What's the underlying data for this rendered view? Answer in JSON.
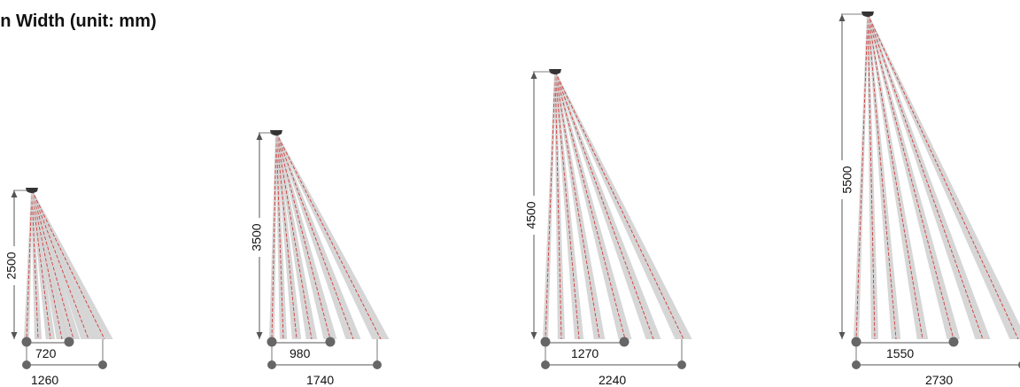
{
  "title": "on Width (unit: mm)",
  "colors": {
    "beam": "#cfcfcf",
    "ray": "#d23b3b",
    "dim": "#555555",
    "node": "#666666",
    "housing": "#333333"
  },
  "units": "mm",
  "diagrams": [
    {
      "height": "2500",
      "inner_width": "720",
      "outer_width": "1260"
    },
    {
      "height": "3500",
      "inner_width": "980",
      "outer_width": "1740"
    },
    {
      "height": "4500",
      "inner_width": "1270",
      "outer_width": "2240"
    },
    {
      "height": "5500",
      "inner_width": "1550",
      "outer_width": "2730"
    }
  ]
}
